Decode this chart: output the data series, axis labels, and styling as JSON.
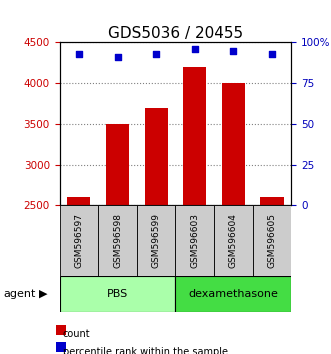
{
  "title": "GDS5036 / 20455",
  "samples": [
    "GSM596597",
    "GSM596598",
    "GSM596599",
    "GSM596603",
    "GSM596604",
    "GSM596605"
  ],
  "counts": [
    2600,
    3500,
    3700,
    4200,
    4000,
    2600
  ],
  "percentiles": [
    93,
    91,
    93,
    96,
    95,
    93
  ],
  "ylim_left": [
    2500,
    4500
  ],
  "ylim_right": [
    0,
    100
  ],
  "yticks_left": [
    2500,
    3000,
    3500,
    4000,
    4500
  ],
  "yticks_right": [
    0,
    25,
    50,
    75,
    100
  ],
  "ytick_labels_right": [
    "0",
    "25",
    "50",
    "75",
    "100%"
  ],
  "groups": [
    {
      "label": "PBS",
      "start": 0,
      "end": 3,
      "color": "#aaffaa"
    },
    {
      "label": "dexamethasone",
      "start": 3,
      "end": 6,
      "color": "#44dd44"
    }
  ],
  "bar_color": "#CC0000",
  "dot_color": "#0000CC",
  "bar_width": 0.6,
  "sample_box_color": "#cccccc",
  "agent_label": "agent",
  "legend_count_label": "count",
  "legend_percentile_label": "percentile rank within the sample",
  "title_fontsize": 11,
  "axis_color_left": "#CC0000",
  "axis_color_right": "#0000BB"
}
